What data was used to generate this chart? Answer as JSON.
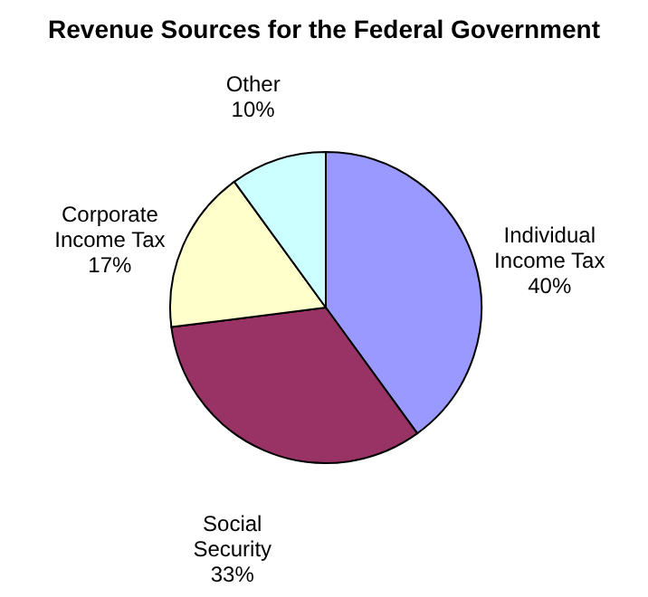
{
  "chart_data": {
    "type": "pie",
    "title": "Revenue Sources for the Federal Government",
    "categories": [
      "Individual Income Tax",
      "Social Security",
      "Corporate Income Tax",
      "Other"
    ],
    "values": [
      40,
      33,
      17,
      10
    ],
    "value_labels": [
      "40%",
      "33%",
      "17%",
      "10%"
    ],
    "colors": [
      "#9999ff",
      "#993366",
      "#ffffcc",
      "#ccffff"
    ]
  }
}
